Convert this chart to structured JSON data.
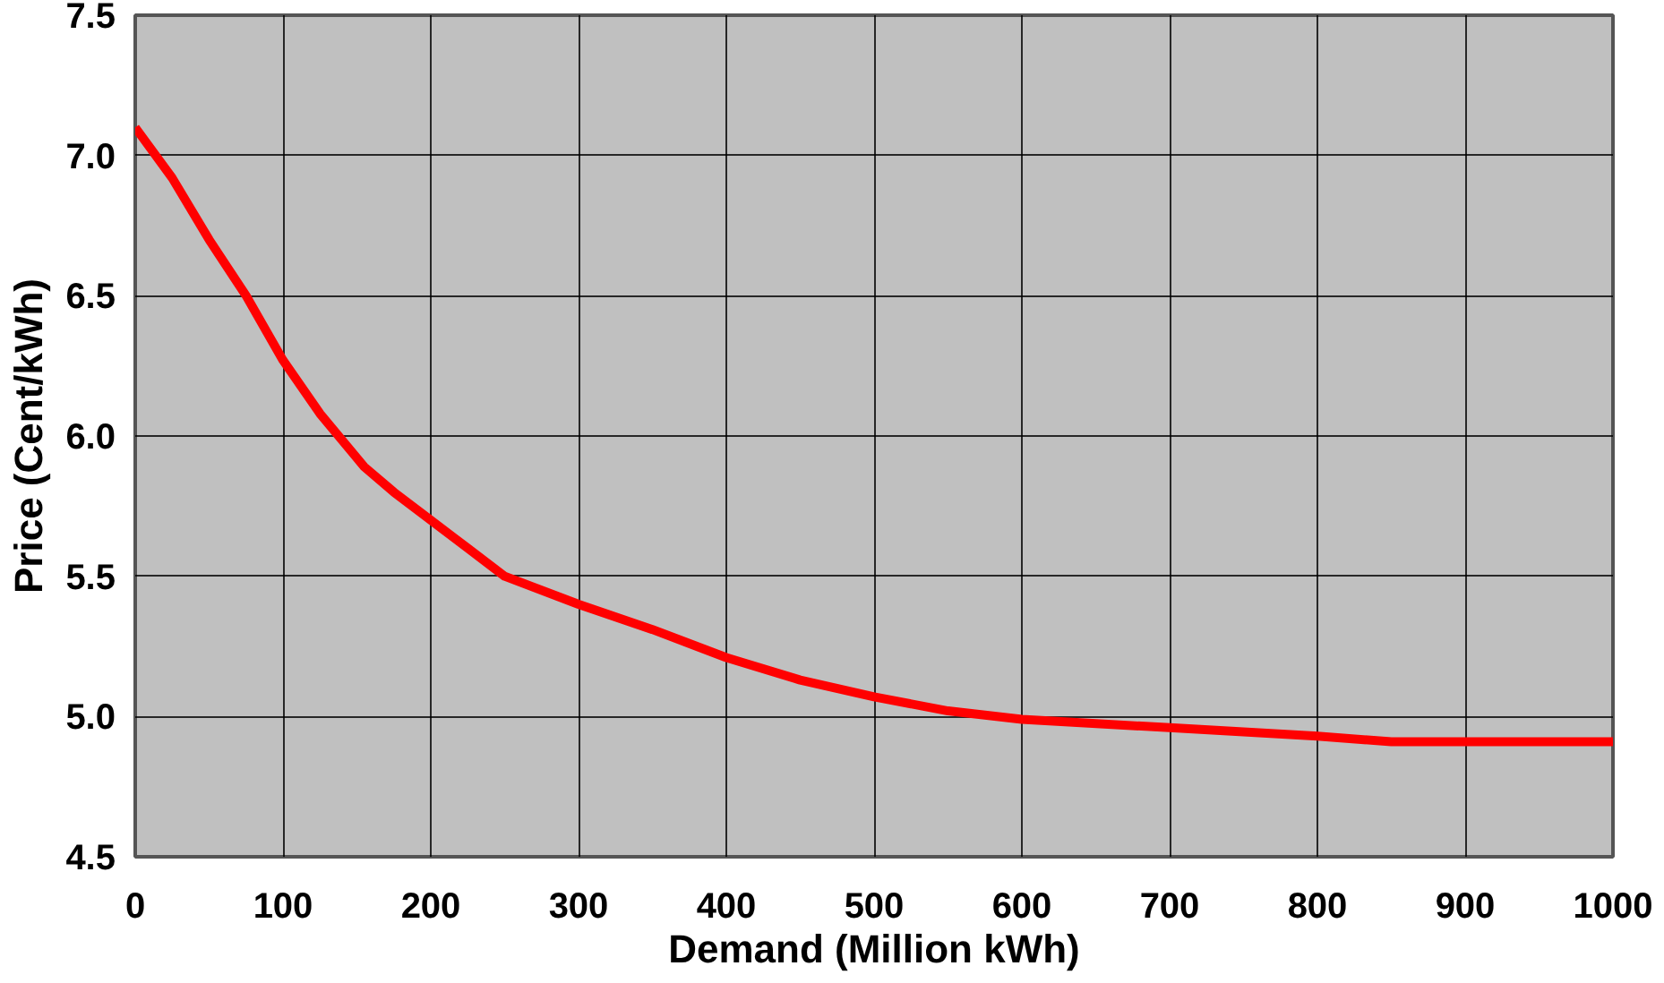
{
  "chart_data": {
    "type": "line",
    "xlabel": "Demand (Million kWh)",
    "ylabel": "Price (Cent/kWh)",
    "x": [
      0,
      25,
      50,
      75,
      100,
      125,
      155,
      175,
      200,
      225,
      250,
      300,
      350,
      400,
      450,
      500,
      550,
      600,
      700,
      800,
      850,
      900,
      1000
    ],
    "series": [
      {
        "color": "#ff0000",
        "values": [
          7.1,
          6.92,
          6.7,
          6.5,
          6.27,
          6.08,
          5.89,
          5.8,
          5.7,
          5.6,
          5.5,
          5.4,
          5.31,
          5.21,
          5.13,
          5.07,
          5.02,
          4.99,
          4.96,
          4.93,
          4.91,
          4.91,
          4.91
        ]
      }
    ],
    "xlim": [
      0,
      1000
    ],
    "xticks": [
      0,
      100,
      200,
      300,
      400,
      500,
      600,
      700,
      800,
      900,
      1000
    ],
    "ylim": [
      4.5,
      7.5
    ],
    "yticks": [
      {
        "value": 4.5,
        "label": "4.5"
      },
      {
        "value": 5,
        "label": "5.0"
      },
      {
        "value": 5.5,
        "label": "5.5"
      },
      {
        "value": 6,
        "label": "6.0"
      },
      {
        "value": 6.5,
        "label": "6.5"
      },
      {
        "value": 7,
        "label": "7.0"
      },
      {
        "value": 7.5,
        "label": "7.5"
      }
    ],
    "grid": true,
    "marker": "none",
    "line_style": "solid"
  }
}
